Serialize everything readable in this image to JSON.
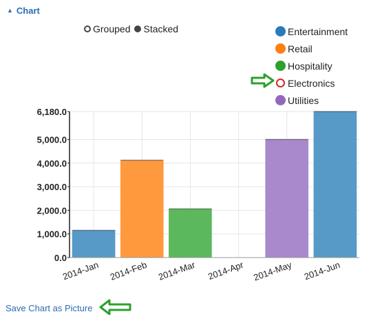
{
  "header": {
    "caret_icon": "caret-up-icon",
    "title": "Chart"
  },
  "mode_toggle": {
    "grouped_label": "Grouped",
    "stacked_label": "Stacked",
    "selected": "Stacked"
  },
  "legend": {
    "items": [
      {
        "label": "Entertainment",
        "color": "#2b7bba",
        "state": "filled"
      },
      {
        "label": "Retail",
        "color": "#ff7f0e",
        "state": "filled"
      },
      {
        "label": "Hospitality",
        "color": "#2ca02c",
        "state": "filled"
      },
      {
        "label": "Electronics",
        "color": "#d62728",
        "state": "hollow"
      },
      {
        "label": "Utilities",
        "color": "#9467bd",
        "state": "filled"
      }
    ]
  },
  "chart_data": {
    "type": "bar",
    "stacked": true,
    "categories": [
      "2014-Jan",
      "2014-Feb",
      "2014-Mar",
      "2014-Apr",
      "2014-May",
      "2014-Jun"
    ],
    "series": [
      {
        "name": "Entertainment",
        "color": "#5799c7",
        "values": [
          1150,
          0,
          0,
          0,
          0,
          6180
        ]
      },
      {
        "name": "Retail",
        "color": "#ff993e",
        "values": [
          0,
          4120,
          0,
          0,
          0,
          0
        ]
      },
      {
        "name": "Hospitality",
        "color": "#5cb85c",
        "values": [
          0,
          0,
          2060,
          0,
          0,
          0
        ]
      },
      {
        "name": "Electronics",
        "color": "#d62728",
        "values": [
          0,
          0,
          0,
          0,
          0,
          0
        ]
      },
      {
        "name": "Utilities",
        "color": "#a988cc",
        "values": [
          0,
          0,
          0,
          0,
          5000,
          0
        ]
      }
    ],
    "ylim": [
      0,
      6180
    ],
    "y_ticks": [
      "0.0",
      "1,000.0",
      "2,000.0",
      "3,000.0",
      "4,000.0",
      "5,000.0",
      "6,180.0"
    ],
    "y_tick_values": [
      0,
      1000,
      2000,
      3000,
      4000,
      5000,
      6180
    ],
    "xlabel": "",
    "ylabel": "",
    "grid": true
  },
  "save": {
    "label": "Save Chart as Picture"
  },
  "annotations": {
    "arrow_icon_1": "green-arrow-icon",
    "arrow_icon_2": "green-arrow-icon"
  }
}
